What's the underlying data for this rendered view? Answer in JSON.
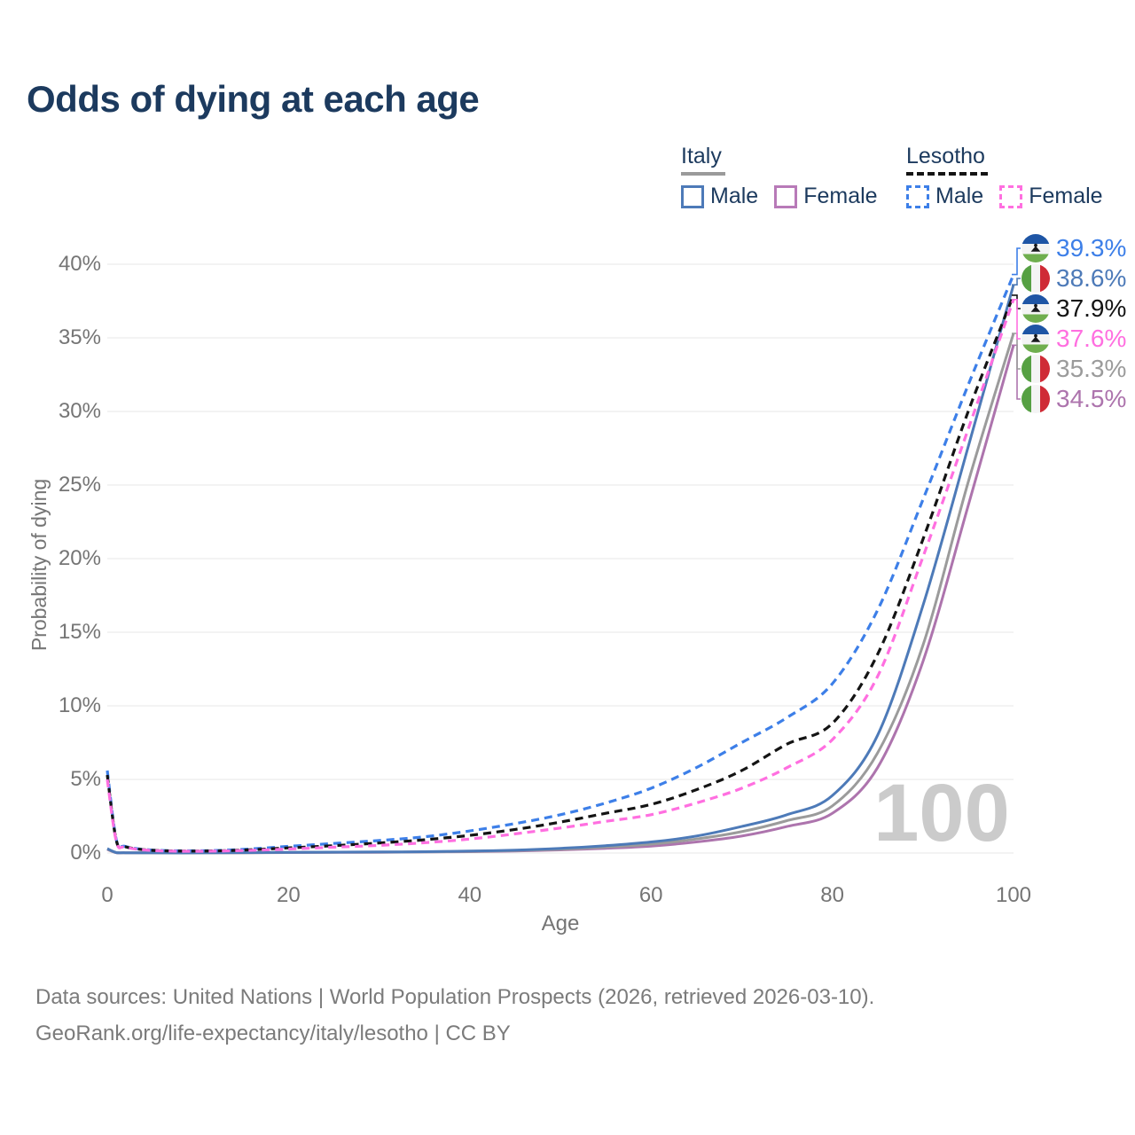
{
  "title": "Odds of dying at each age",
  "legend": {
    "groups": [
      {
        "name": "Italy",
        "underline_style": "solid",
        "underline_color": "#9a9a9a",
        "items": [
          {
            "label": "Male",
            "color": "#4d7ab8",
            "dashed": false
          },
          {
            "label": "Female",
            "color": "#b87ab8",
            "dashed": false
          }
        ]
      },
      {
        "name": "Lesotho",
        "underline_style": "dashed",
        "underline_color": "#141414",
        "items": [
          {
            "label": "Male",
            "color": "#3d7fe8",
            "dashed": true
          },
          {
            "label": "Female",
            "color": "#ff6fe0",
            "dashed": true
          }
        ]
      }
    ]
  },
  "chart_data": {
    "type": "line",
    "title": "Odds of dying at each age",
    "xlabel": "Age",
    "ylabel": "Probability of dying",
    "xlim": [
      0,
      100
    ],
    "ylim": [
      0,
      40
    ],
    "x_ticks": [
      0,
      20,
      40,
      60,
      80,
      100
    ],
    "y_ticks": [
      0,
      5,
      10,
      15,
      20,
      25,
      30,
      35,
      40
    ],
    "y_tick_suffix": "%",
    "grid": "horizontal",
    "legend_position": "top-right",
    "watermark": "100",
    "x": [
      0,
      1,
      2,
      5,
      10,
      15,
      20,
      25,
      30,
      35,
      40,
      45,
      50,
      55,
      60,
      65,
      70,
      75,
      80,
      85,
      90,
      95,
      100
    ],
    "series": [
      {
        "name": "Italy Female",
        "country": "Italy",
        "sex": "Female",
        "color": "#ad74ad",
        "dashed": false,
        "flag": "italy",
        "end_label": "34.5%",
        "row": 5,
        "values": [
          0.24,
          0.02,
          0.015,
          0.01,
          0.01,
          0.02,
          0.03,
          0.04,
          0.05,
          0.07,
          0.09,
          0.14,
          0.21,
          0.32,
          0.47,
          0.75,
          1.15,
          1.8,
          2.7,
          5.8,
          13.0,
          23.6,
          34.5
        ]
      },
      {
        "name": "Italy Both sexes",
        "country": "Italy",
        "sex": "Both",
        "color": "#9b9b9b",
        "dashed": false,
        "flag": "italy",
        "end_label": "35.3%",
        "row": 4,
        "values": [
          0.27,
          0.025,
          0.018,
          0.01,
          0.01,
          0.02,
          0.04,
          0.05,
          0.06,
          0.08,
          0.11,
          0.17,
          0.26,
          0.4,
          0.6,
          0.95,
          1.45,
          2.2,
          3.2,
          6.8,
          14.1,
          25.2,
          35.3
        ]
      },
      {
        "name": "Italy Male",
        "country": "Italy",
        "sex": "Male",
        "color": "#4d7ab8",
        "dashed": false,
        "flag": "italy",
        "end_label": "38.6%",
        "row": 1,
        "values": [
          0.3,
          0.03,
          0.02,
          0.01,
          0.01,
          0.03,
          0.05,
          0.06,
          0.07,
          0.09,
          0.13,
          0.2,
          0.32,
          0.5,
          0.75,
          1.15,
          1.8,
          2.6,
          3.9,
          8.0,
          16.8,
          27.6,
          38.6
        ]
      },
      {
        "name": "Lesotho Male",
        "country": "Lesotho",
        "sex": "Male",
        "color": "#3d7fe8",
        "dashed": true,
        "flag": "lesotho",
        "end_label": "39.3%",
        "row": 0,
        "values": [
          5.6,
          0.9,
          0.45,
          0.2,
          0.15,
          0.25,
          0.45,
          0.65,
          0.85,
          1.1,
          1.5,
          2.0,
          2.6,
          3.4,
          4.4,
          5.8,
          7.5,
          9.2,
          11.5,
          16.5,
          24.0,
          31.8,
          39.3
        ]
      },
      {
        "name": "Lesotho Both sexes",
        "country": "Lesotho",
        "sex": "Both",
        "color": "#141414",
        "dashed": true,
        "flag": "lesotho",
        "end_label": "37.9%",
        "row": 2,
        "values": [
          5.3,
          0.85,
          0.42,
          0.18,
          0.13,
          0.2,
          0.35,
          0.5,
          0.68,
          0.9,
          1.2,
          1.6,
          2.1,
          2.7,
          3.3,
          4.3,
          5.6,
          7.4,
          8.8,
          13.5,
          21.3,
          30.0,
          37.9
        ]
      },
      {
        "name": "Lesotho Female",
        "country": "Lesotho",
        "sex": "Female",
        "color": "#ff6fe0",
        "dashed": true,
        "flag": "lesotho",
        "end_label": "37.6%",
        "row": 3,
        "values": [
          5.0,
          0.8,
          0.4,
          0.17,
          0.12,
          0.17,
          0.27,
          0.4,
          0.52,
          0.7,
          0.95,
          1.3,
          1.7,
          2.15,
          2.6,
          3.4,
          4.4,
          5.8,
          7.7,
          12.0,
          20.1,
          28.8,
          37.6
        ]
      }
    ]
  },
  "colors": {
    "title": "#1c3a5e",
    "axis_text": "#757575",
    "gridline": "#ececec",
    "watermark": "#cbcbcb",
    "footer_text": "#7b7b7b"
  },
  "footer": {
    "line1": "Data sources: United Nations | World Population Prospects (2026, retrieved 2026-03-10).",
    "line2": "GeoRank.org/life-expectancy/italy/lesotho | CC BY"
  }
}
